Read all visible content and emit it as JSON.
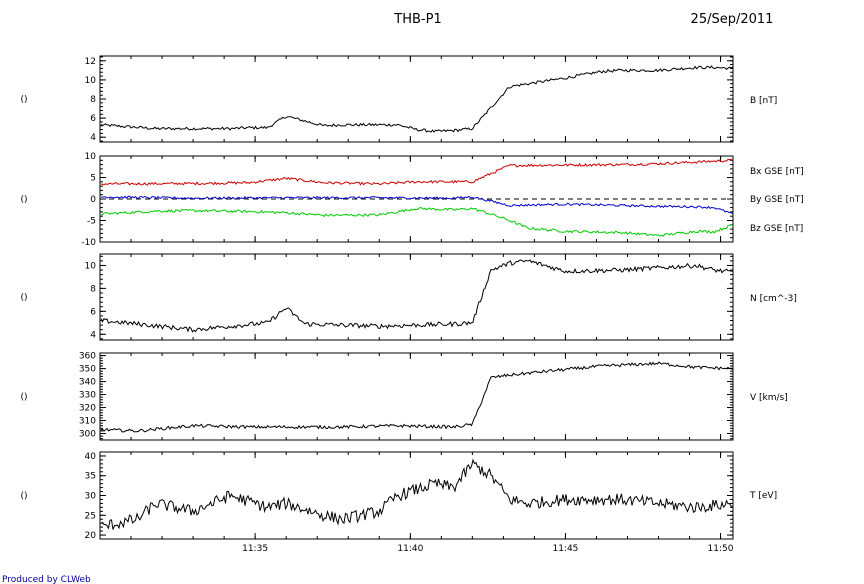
{
  "header": {
    "title": "THB-P1",
    "date": "25/Sep/2011"
  },
  "footer": {
    "credit": "Produced by CLWeb"
  },
  "colors": {
    "bx": "#cc0000",
    "by": "#00cc00",
    "bz": "#0000cc",
    "line": "#000000",
    "credit": "#0000a0"
  },
  "chart_data": [
    {
      "type": "line",
      "left_label": "()",
      "ylim": [
        3.5,
        12.5
      ],
      "yticks": [
        "4",
        "6",
        "8",
        "10",
        "12"
      ],
      "ytick_values": [
        4,
        6,
        8,
        10,
        12
      ],
      "series": [
        {
          "name": "B [nT]",
          "color": "#000000",
          "x": [
            11.5,
            11.53,
            11.55,
            11.57,
            11.58,
            11.59,
            11.6,
            11.62,
            11.63,
            11.65,
            11.66,
            11.67,
            11.68,
            11.69,
            11.7,
            11.72,
            11.73,
            11.75,
            11.77,
            11.78,
            11.8,
            11.82,
            11.83,
            11.84
          ],
          "y": [
            5.3,
            4.9,
            4.9,
            4.9,
            5.0,
            5.0,
            6.2,
            5.2,
            5.3,
            5.3,
            5.3,
            4.8,
            4.6,
            4.7,
            4.9,
            9.3,
            9.6,
            10.2,
            10.9,
            11.0,
            11.0,
            11.3,
            11.3,
            11.2
          ],
          "dy_noise": 0.15
        }
      ]
    },
    {
      "type": "line",
      "left_label": "()",
      "ylim": [
        -10,
        10
      ],
      "yticks": [
        "10",
        "5",
        "0",
        "-5",
        "-10"
      ],
      "ytick_values": [
        10,
        5,
        0,
        -5,
        -10
      ],
      "zero_line": true,
      "series": [
        {
          "name": "Bx GSE [nT]",
          "color": "#cc0000",
          "x": [
            11.5,
            11.55,
            11.58,
            11.6,
            11.62,
            11.65,
            11.67,
            11.69,
            11.7,
            11.72,
            11.75,
            11.78,
            11.8,
            11.83,
            11.84
          ],
          "y": [
            3.5,
            3.6,
            3.8,
            4.8,
            3.8,
            3.5,
            4.0,
            4.0,
            4.0,
            7.8,
            7.9,
            8.0,
            8.2,
            8.8,
            9.0
          ],
          "dy_noise": 0.3
        },
        {
          "name": "By GSE [nT]",
          "color": "#00cc00",
          "x": [
            11.5,
            11.53,
            11.55,
            11.58,
            11.6,
            11.62,
            11.65,
            11.67,
            11.69,
            11.7,
            11.71,
            11.72,
            11.73,
            11.75,
            11.78,
            11.8,
            11.82,
            11.83,
            11.84
          ],
          "y": [
            -3.5,
            -2.8,
            -2.7,
            -2.9,
            -3.2,
            -3.8,
            -3.7,
            -2.2,
            -2.5,
            -2.2,
            -3.5,
            -5.0,
            -6.8,
            -7.5,
            -7.8,
            -8.5,
            -7.5,
            -7.6,
            -6.0
          ],
          "dy_noise": 0.3
        },
        {
          "name": "Bz GSE [nT]",
          "color": "#0000cc",
          "x": [
            11.5,
            11.55,
            11.6,
            11.65,
            11.69,
            11.7,
            11.72,
            11.75,
            11.78,
            11.8,
            11.82,
            11.83,
            11.84
          ],
          "y": [
            0.5,
            0.2,
            0.3,
            0.3,
            0.2,
            0.5,
            -1.5,
            -1.2,
            -1.5,
            -1.7,
            -1.8,
            -2.0,
            -3.5
          ],
          "dy_noise": 0.25
        }
      ]
    },
    {
      "type": "line",
      "left_label": "()",
      "ylim": [
        3.5,
        11
      ],
      "yticks": [
        "4",
        "6",
        "8",
        "10"
      ],
      "ytick_values": [
        4,
        6,
        8,
        10
      ],
      "series": [
        {
          "name": "N [cm^-3]",
          "color": "#000000",
          "x": [
            11.5,
            11.52,
            11.55,
            11.57,
            11.59,
            11.6,
            11.61,
            11.63,
            11.65,
            11.67,
            11.69,
            11.7,
            11.71,
            11.72,
            11.73,
            11.75,
            11.78,
            11.8,
            11.82,
            11.83,
            11.84
          ],
          "y": [
            5.2,
            4.9,
            4.4,
            4.7,
            5.0,
            6.3,
            4.9,
            4.8,
            4.7,
            4.8,
            4.9,
            5.0,
            9.6,
            10.2,
            10.4,
            9.5,
            9.6,
            9.8,
            10.0,
            9.6,
            9.4
          ],
          "dy_noise": 0.2
        }
      ]
    },
    {
      "type": "line",
      "left_label": "()",
      "ylim": [
        295,
        362
      ],
      "yticks": [
        "300",
        "310",
        "320",
        "330",
        "340",
        "350",
        "360"
      ],
      "ytick_values": [
        300,
        310,
        320,
        330,
        340,
        350,
        360
      ],
      "series": [
        {
          "name": "V [km/s]",
          "color": "#000000",
          "x": [
            11.5,
            11.52,
            11.55,
            11.58,
            11.6,
            11.63,
            11.66,
            11.69,
            11.7,
            11.71,
            11.72,
            11.74,
            11.77,
            11.8,
            11.82,
            11.84
          ],
          "y": [
            303,
            302,
            306,
            305,
            305,
            305,
            306,
            305,
            307,
            343,
            345,
            348,
            352,
            354,
            351,
            350
          ],
          "dy_noise": 1.2
        }
      ]
    },
    {
      "type": "line",
      "left_label": "()",
      "ylim": [
        19,
        41
      ],
      "yticks": [
        "20",
        "25",
        "30",
        "35",
        "40"
      ],
      "ytick_values": [
        20,
        25,
        30,
        35,
        40
      ],
      "series": [
        {
          "name": "T [eV]",
          "color": "#000000",
          "x": [
            11.5,
            11.52,
            11.53,
            11.55,
            11.57,
            11.59,
            11.6,
            11.62,
            11.63,
            11.65,
            11.66,
            11.68,
            11.69,
            11.7,
            11.71,
            11.72,
            11.73,
            11.75,
            11.78,
            11.8,
            11.82,
            11.84
          ],
          "y": [
            22,
            24,
            28,
            26,
            30,
            27,
            28,
            25,
            24,
            26,
            30,
            33,
            32,
            38,
            35,
            29,
            28,
            29,
            29,
            28,
            27,
            28
          ],
          "dy_noise": 1.5
        }
      ]
    }
  ],
  "x_axis": {
    "xlim": [
      11.5,
      11.84
    ],
    "ticks": [
      {
        "value": 11.5833,
        "label": "11:35"
      },
      {
        "value": 11.6667,
        "label": "11:40"
      },
      {
        "value": 11.75,
        "label": "11:45"
      },
      {
        "value": 11.8333,
        "label": "11:50"
      }
    ]
  }
}
